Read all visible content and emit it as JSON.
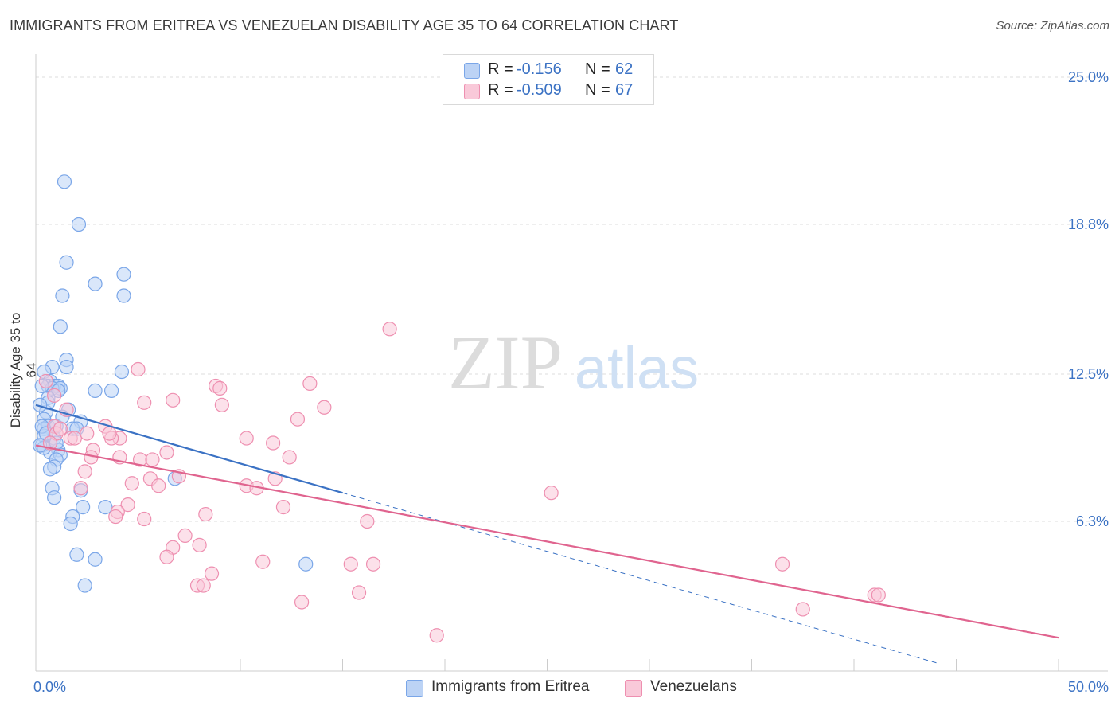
{
  "title": "IMMIGRANTS FROM ERITREA VS VENEZUELAN DISABILITY AGE 35 TO 64 CORRELATION CHART",
  "source": "Source: ZipAtlas.com",
  "watermark": {
    "zip": "ZIP",
    "atlas": "atlas"
  },
  "legend": {
    "series": [
      {
        "r_label": "R =",
        "r_value": "-0.156",
        "n_label": "N =",
        "n_value": "62",
        "color": "#7aa6e8",
        "fill": "#bcd3f5"
      },
      {
        "r_label": "R =",
        "r_value": "-0.509",
        "n_label": "N =",
        "n_value": "67",
        "color": "#ee8fb0",
        "fill": "#f9c9d9"
      }
    ]
  },
  "bottom_legend": [
    {
      "label": "Immigrants from Eritrea",
      "color": "#7aa6e8",
      "fill": "#bcd3f5"
    },
    {
      "label": "Venezuelans",
      "color": "#ee8fb0",
      "fill": "#f9c9d9"
    }
  ],
  "chart_data": {
    "type": "scatter",
    "title": "IMMIGRANTS FROM ERITREA VS VENEZUELAN DISABILITY AGE 35 TO 64 CORRELATION CHART",
    "xlabel": "",
    "ylabel": "Disability Age 35 to 64",
    "xlim": [
      0,
      50
    ],
    "ylim": [
      0,
      25
    ],
    "x_tick_labels": [
      "0.0%",
      "50.0%"
    ],
    "y_ticks": [
      6.3,
      12.5,
      18.8,
      25.0
    ],
    "y_tick_labels": [
      "6.3%",
      "12.5%",
      "18.8%",
      "25.0%"
    ],
    "series": [
      {
        "name": "Immigrants from Eritrea",
        "color": "#3b72c4",
        "fill": "#bcd3f5",
        "stroke": "#7aa6e8",
        "trend": {
          "x": [
            0,
            15
          ],
          "y": [
            11.2,
            7.5
          ]
        },
        "trend_extension": {
          "x": [
            15,
            44.2
          ],
          "y": [
            7.5,
            0.3
          ]
        },
        "points": [
          [
            1.4,
            20.6
          ],
          [
            2.1,
            18.8
          ],
          [
            1.5,
            17.2
          ],
          [
            2.9,
            16.3
          ],
          [
            4.3,
            16.7
          ],
          [
            4.3,
            15.8
          ],
          [
            1.3,
            15.8
          ],
          [
            1.2,
            14.5
          ],
          [
            1.5,
            13.1
          ],
          [
            0.8,
            12.8
          ],
          [
            1.5,
            12.8
          ],
          [
            4.2,
            12.6
          ],
          [
            0.4,
            12.6
          ],
          [
            0.7,
            12.2
          ],
          [
            0.6,
            12.0
          ],
          [
            0.9,
            12.0
          ],
          [
            1.1,
            12.0
          ],
          [
            1.2,
            11.9
          ],
          [
            0.8,
            11.9
          ],
          [
            1.1,
            11.8
          ],
          [
            2.9,
            11.8
          ],
          [
            3.7,
            11.8
          ],
          [
            0.6,
            11.5
          ],
          [
            0.3,
            12.0
          ],
          [
            1.6,
            11.0
          ],
          [
            0.5,
            10.9
          ],
          [
            0.4,
            10.6
          ],
          [
            2.2,
            10.5
          ],
          [
            0.6,
            10.3
          ],
          [
            1.0,
            10.3
          ],
          [
            1.8,
            10.2
          ],
          [
            2.0,
            10.2
          ],
          [
            0.4,
            10.2
          ],
          [
            0.4,
            9.9
          ],
          [
            0.9,
            9.8
          ],
          [
            1.1,
            9.3
          ],
          [
            0.7,
            9.2
          ],
          [
            1.2,
            9.1
          ],
          [
            1.0,
            8.9
          ],
          [
            0.3,
            9.5
          ],
          [
            0.4,
            9.4
          ],
          [
            0.2,
            9.5
          ],
          [
            0.9,
            8.6
          ],
          [
            0.7,
            8.5
          ],
          [
            0.8,
            7.7
          ],
          [
            2.2,
            7.6
          ],
          [
            6.8,
            8.1
          ],
          [
            0.9,
            7.3
          ],
          [
            2.3,
            6.9
          ],
          [
            3.4,
            6.9
          ],
          [
            1.8,
            6.5
          ],
          [
            1.7,
            6.2
          ],
          [
            2.0,
            4.9
          ],
          [
            2.9,
            4.7
          ],
          [
            13.2,
            4.5
          ],
          [
            2.4,
            3.6
          ],
          [
            0.3,
            10.3
          ],
          [
            0.6,
            11.3
          ],
          [
            1.0,
            9.6
          ],
          [
            0.5,
            10.0
          ],
          [
            1.3,
            10.7
          ],
          [
            0.2,
            11.2
          ]
        ]
      },
      {
        "name": "Venezuelans",
        "color": "#e0648f",
        "fill": "#f9c9d9",
        "stroke": "#ee8fb0",
        "trend": {
          "x": [
            0,
            50
          ],
          "y": [
            9.5,
            1.4
          ]
        },
        "points": [
          [
            17.3,
            14.4
          ],
          [
            5.0,
            12.7
          ],
          [
            0.5,
            12.2
          ],
          [
            8.8,
            12.0
          ],
          [
            13.4,
            12.1
          ],
          [
            9.0,
            11.9
          ],
          [
            0.9,
            11.6
          ],
          [
            5.3,
            11.3
          ],
          [
            6.7,
            11.4
          ],
          [
            9.1,
            11.2
          ],
          [
            14.1,
            11.1
          ],
          [
            12.8,
            10.6
          ],
          [
            1.5,
            11.0
          ],
          [
            0.9,
            10.3
          ],
          [
            3.4,
            10.3
          ],
          [
            1.0,
            10.0
          ],
          [
            1.7,
            9.8
          ],
          [
            1.9,
            9.8
          ],
          [
            4.1,
            9.8
          ],
          [
            3.7,
            9.8
          ],
          [
            10.3,
            9.8
          ],
          [
            11.6,
            9.6
          ],
          [
            6.4,
            9.2
          ],
          [
            4.1,
            9.0
          ],
          [
            2.8,
            9.3
          ],
          [
            5.1,
            8.9
          ],
          [
            5.7,
            8.9
          ],
          [
            12.4,
            9.0
          ],
          [
            2.7,
            9.0
          ],
          [
            2.4,
            8.4
          ],
          [
            7.0,
            8.2
          ],
          [
            5.6,
            8.1
          ],
          [
            11.7,
            8.1
          ],
          [
            4.7,
            7.9
          ],
          [
            6.0,
            7.8
          ],
          [
            10.3,
            7.8
          ],
          [
            10.8,
            7.7
          ],
          [
            2.2,
            7.7
          ],
          [
            25.2,
            7.5
          ],
          [
            4.5,
            7.0
          ],
          [
            12.1,
            6.9
          ],
          [
            4.0,
            6.7
          ],
          [
            3.9,
            6.5
          ],
          [
            8.3,
            6.6
          ],
          [
            5.3,
            6.4
          ],
          [
            16.2,
            6.3
          ],
          [
            7.3,
            5.7
          ],
          [
            8.0,
            5.3
          ],
          [
            6.7,
            5.2
          ],
          [
            6.4,
            4.8
          ],
          [
            11.1,
            4.6
          ],
          [
            15.4,
            4.5
          ],
          [
            16.5,
            4.5
          ],
          [
            36.5,
            4.5
          ],
          [
            8.6,
            4.1
          ],
          [
            7.9,
            3.6
          ],
          [
            8.2,
            3.6
          ],
          [
            15.8,
            3.3
          ],
          [
            41.0,
            3.2
          ],
          [
            41.2,
            3.2
          ],
          [
            13.0,
            2.9
          ],
          [
            37.5,
            2.6
          ],
          [
            19.6,
            1.5
          ],
          [
            2.5,
            10.0
          ],
          [
            3.6,
            10.0
          ],
          [
            1.2,
            10.2
          ],
          [
            0.7,
            9.6
          ]
        ]
      }
    ]
  }
}
